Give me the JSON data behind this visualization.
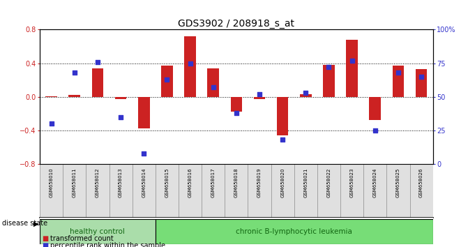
{
  "title": "GDS3902 / 208918_s_at",
  "samples": [
    "GSM658010",
    "GSM658011",
    "GSM658012",
    "GSM658013",
    "GSM658014",
    "GSM658015",
    "GSM658016",
    "GSM658017",
    "GSM658018",
    "GSM658019",
    "GSM658020",
    "GSM658021",
    "GSM658022",
    "GSM658023",
    "GSM658024",
    "GSM658025",
    "GSM658026"
  ],
  "bar_values": [
    0.01,
    0.02,
    0.34,
    -0.03,
    -0.38,
    0.37,
    0.72,
    0.34,
    -0.18,
    -0.03,
    -0.46,
    0.03,
    0.38,
    0.68,
    -0.28,
    0.37,
    0.33
  ],
  "dot_values": [
    30,
    68,
    76,
    35,
    8,
    63,
    75,
    57,
    38,
    52,
    18,
    53,
    72,
    77,
    25,
    68,
    65
  ],
  "bar_color": "#cc2222",
  "dot_color": "#3333cc",
  "ylim_left": [
    -0.8,
    0.8
  ],
  "ylim_right": [
    0,
    100
  ],
  "yticks_left": [
    -0.8,
    -0.4,
    0.0,
    0.4,
    0.8
  ],
  "yticks_right": [
    0,
    25,
    50,
    75,
    100
  ],
  "yticklabels_right": [
    "0",
    "25",
    "50",
    "75",
    "100%"
  ],
  "healthy_control_count": 5,
  "healthy_control_label": "healthy control",
  "leukemia_label": "chronic B-lymphocytic leukemia",
  "disease_state_label": "disease state",
  "legend_bar_label": "transformed count",
  "legend_dot_label": "percentile rank within the sample",
  "healthy_color": "#aaddaa",
  "leukemia_color": "#77dd77",
  "group_label_color": "#116611",
  "bg_color": "#ffffff",
  "ax_bg_color": "#ffffff",
  "tick_label_fontsize": 7,
  "title_fontsize": 10,
  "sample_label_fontsize": 5,
  "disease_label_fontsize": 7.5,
  "disease_state_fontsize": 7
}
